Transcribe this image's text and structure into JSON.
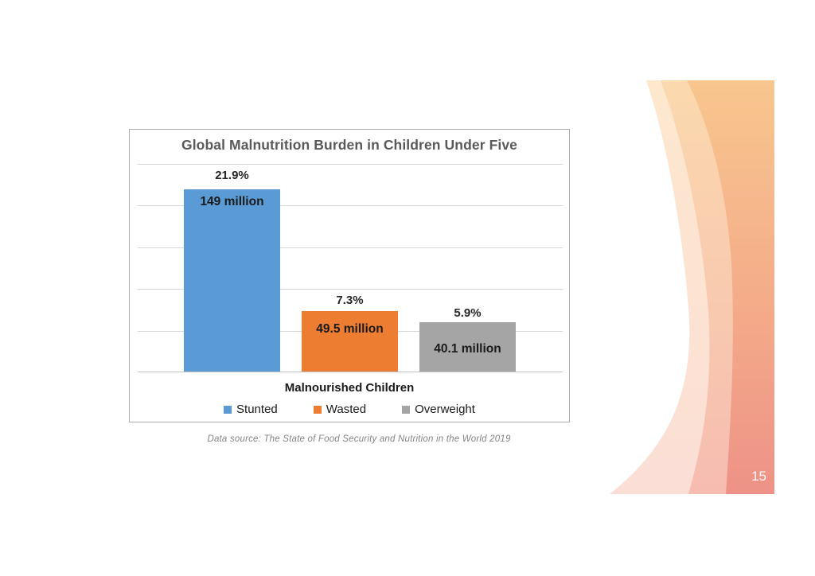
{
  "slide": {
    "page_number": "15",
    "footnote": "Data source: The State of Food Security and Nutrition in the World 2019"
  },
  "chart_data": {
    "type": "bar",
    "title": "Global Malnutrition Burden in Children Under Five",
    "title_color": "#595959",
    "xlabel": "Malnourished Children",
    "ylabel": "",
    "categories": [
      "Stunted",
      "Wasted",
      "Overweight"
    ],
    "values_percent": [
      21.9,
      7.3,
      5.9
    ],
    "percent_labels": [
      "21.9%",
      "7.3%",
      "5.9%"
    ],
    "count_labels": [
      "149 million",
      "49.5 million",
      "40.1 million"
    ],
    "colors": [
      "#5B9BD5",
      "#ED7D31",
      "#A5A5A5"
    ],
    "ylim": [
      0,
      25
    ],
    "gridline_step_percent": 5,
    "grid": true,
    "y_axis_labels_visible": false,
    "legend_position": "bottom"
  },
  "decoration": {
    "gradient_main_top": "#F8C68E",
    "gradient_main_mid": "#F4AB89",
    "gradient_main_bottom": "#EE9287",
    "gradient_mid_top": "#FBD9AE",
    "gradient_mid_bottom": "#F6BCB0",
    "gradient_light_top": "#FDE8CE",
    "gradient_light_bottom": "#FBDED6"
  }
}
